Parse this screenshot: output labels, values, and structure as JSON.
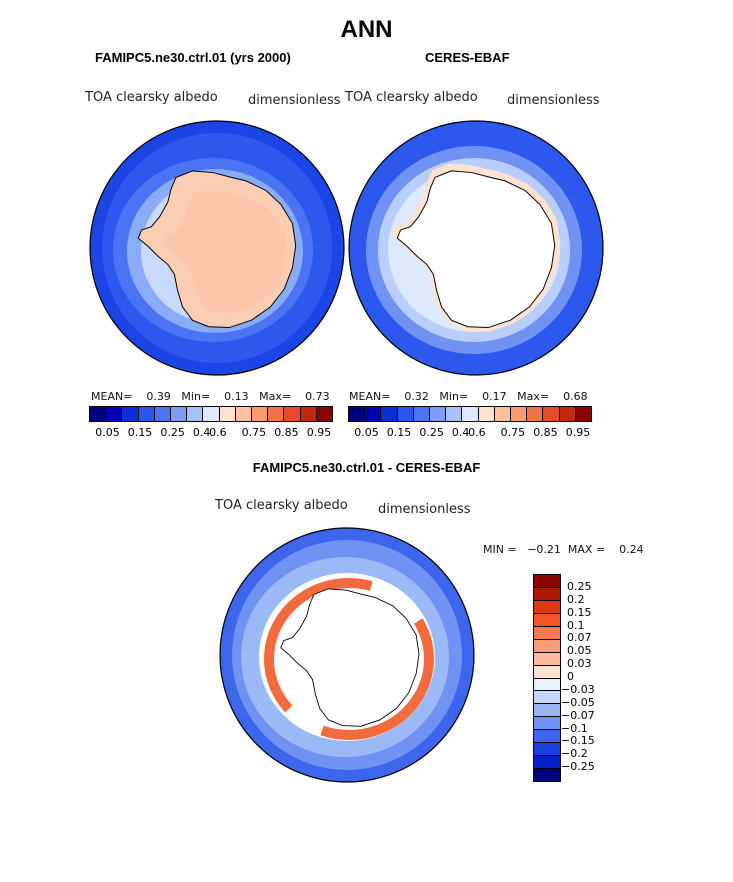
{
  "title": "ANN",
  "panels": [
    {
      "title": "FAMIPC5.ne30.ctrl.01 (yrs 2000)",
      "variable": "TOA clearsky albedo",
      "units": "dimensionless",
      "mean_label": "MEAN=",
      "mean": "0.39",
      "min_label": "Min=",
      "min": "0.13",
      "max_label": "Max=",
      "max": "0.73"
    },
    {
      "title": "CERES-EBAF",
      "variable": "TOA clearsky albedo",
      "units": "dimensionless",
      "mean_label": "MEAN=",
      "mean": "0.32",
      "min_label": "Min=",
      "min": "0.17",
      "max_label": "Max=",
      "max": "0.68"
    }
  ],
  "diff_panel": {
    "title": "FAMIPC5.ne30.ctrl.01 - CERES-EBAF",
    "variable": "TOA clearsky albedo",
    "units": "dimensionless",
    "min_label": "MIN =",
    "min": "−0.21",
    "max_label": "MAX =",
    "max": "0.24"
  },
  "colorbar_h": {
    "colors": [
      "#00007f",
      "#0000b0",
      "#0a2fd8",
      "#2a55ee",
      "#4a74f4",
      "#7e9ef6",
      "#a8c2fa",
      "#dbe8fe",
      "#fde3cf",
      "#fbc0a0",
      "#f99a73",
      "#f4734c",
      "#e94a2a",
      "#c42612",
      "#8b0500"
    ],
    "tick_labels": [
      "0.05",
      "0.15",
      "0.25",
      "0.4",
      "0.6",
      "0.75",
      "0.85",
      "0.95"
    ]
  },
  "colorbar_v": {
    "colors": [
      "#8b0500",
      "#b01a05",
      "#d83a14",
      "#f25322",
      "#f67a4e",
      "#f99b74",
      "#fbbb9c",
      "#fde2cf",
      "#e8f1fe",
      "#c4d6fb",
      "#97b5f6",
      "#6e92f2",
      "#3d66ec",
      "#1a3fe0",
      "#0420c4",
      "#00007f"
    ],
    "tick_labels": [
      "0.25",
      "0.2",
      "0.15",
      "0.1",
      "0.07",
      "0.05",
      "0.03",
      "0",
      "−0.03",
      "−0.05",
      "−0.07",
      "−0.1",
      "−0.15",
      "−0.2",
      "−0.25"
    ]
  }
}
